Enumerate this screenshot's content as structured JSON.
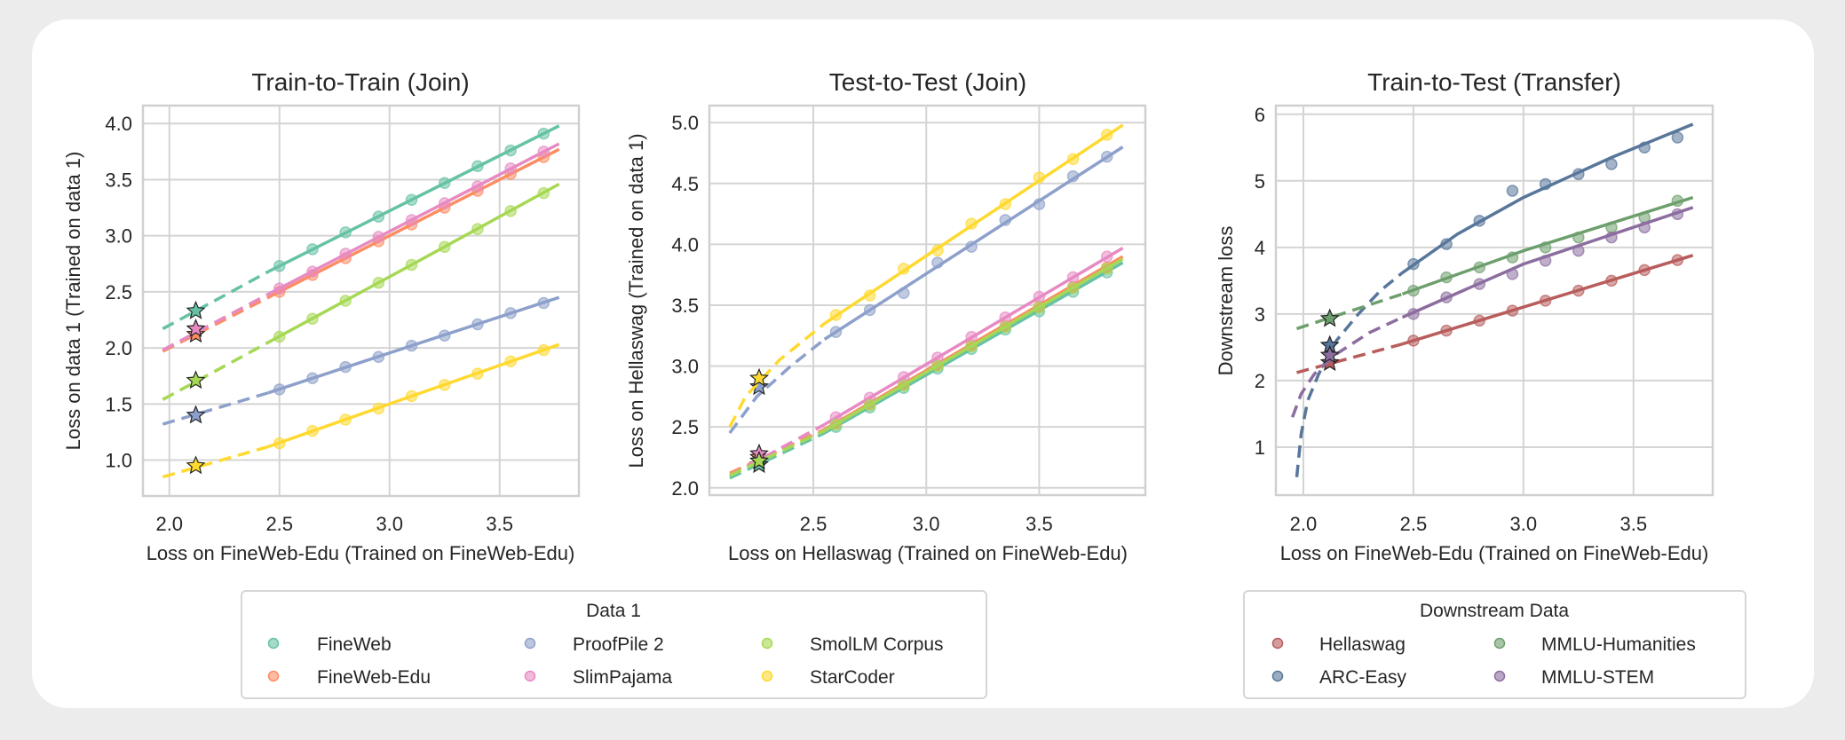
{
  "chart_data": [
    {
      "type": "scatter",
      "title": "Train-to-Train (Join)",
      "xlabel": "Loss on FineWeb-Edu (Trained on FineWeb-Edu)",
      "ylabel": "Loss on data 1 (Trained on data 1)",
      "xlim": [
        1.88,
        3.86
      ],
      "ylim": [
        0.68,
        4.16
      ],
      "xticks": [
        2.0,
        2.5,
        3.0,
        3.5
      ],
      "xtick_labels": [
        "2.0",
        "2.5",
        "3.0",
        "3.5"
      ],
      "yticks": [
        1.0,
        1.5,
        2.0,
        2.5,
        3.0,
        3.5,
        4.0
      ],
      "ytick_labels": [
        "1.0",
        "1.5",
        "2.0",
        "2.5",
        "3.0",
        "3.5",
        "4.0"
      ],
      "grid": true,
      "solid_from": 2.45,
      "x": [
        2.5,
        2.65,
        2.8,
        2.95,
        3.1,
        3.25,
        3.4,
        3.55,
        3.7
      ],
      "series": [
        {
          "name": "FineWeb",
          "color": "#66c2a5",
          "y": [
            2.73,
            2.88,
            3.03,
            3.17,
            3.32,
            3.47,
            3.62,
            3.76,
            3.91
          ],
          "fit": [
            [
              1.97,
              2.17
            ],
            [
              2.45,
              2.68
            ],
            [
              3.1,
              3.32
            ],
            [
              3.77,
              3.98
            ]
          ],
          "star": [
            2.12,
            2.33
          ]
        },
        {
          "name": "FineWeb-Edu",
          "color": "#fc8d62",
          "y": [
            2.5,
            2.65,
            2.8,
            2.95,
            3.1,
            3.25,
            3.4,
            3.55,
            3.7
          ],
          "fit": [
            [
              1.97,
              1.97
            ],
            [
              2.45,
              2.45
            ],
            [
              3.77,
              3.77
            ]
          ],
          "star": [
            2.12,
            2.12
          ]
        },
        {
          "name": "ProofPile 2",
          "color": "#8da0cb",
          "y": [
            1.63,
            1.73,
            1.83,
            1.92,
            2.02,
            2.11,
            2.21,
            2.31,
            2.4
          ],
          "fit": [
            [
              1.97,
              1.32
            ],
            [
              2.45,
              1.6
            ],
            [
              3.1,
              2.02
            ],
            [
              3.77,
              2.45
            ]
          ],
          "star": [
            2.12,
            1.4
          ]
        },
        {
          "name": "SlimPajama",
          "color": "#e78ac3",
          "y": [
            2.53,
            2.68,
            2.84,
            2.99,
            3.14,
            3.29,
            3.44,
            3.6,
            3.75
          ],
          "fit": [
            [
              1.97,
              1.98
            ],
            [
              2.45,
              2.48
            ],
            [
              3.77,
              3.82
            ]
          ],
          "star": [
            2.12,
            2.17
          ]
        },
        {
          "name": "SmolLM Corpus",
          "color": "#a6d854",
          "y": [
            2.1,
            2.26,
            2.42,
            2.58,
            2.74,
            2.9,
            3.06,
            3.22,
            3.38
          ],
          "fit": [
            [
              1.97,
              1.54
            ],
            [
              2.45,
              2.05
            ],
            [
              3.1,
              2.74
            ],
            [
              3.77,
              3.46
            ]
          ],
          "star": [
            2.12,
            1.71
          ]
        },
        {
          "name": "StarCoder",
          "color": "#ffd92f",
          "y": [
            1.15,
            1.26,
            1.36,
            1.46,
            1.57,
            1.67,
            1.77,
            1.88,
            1.98
          ],
          "fit": [
            [
              1.97,
              0.85
            ],
            [
              2.45,
              1.12
            ],
            [
              3.1,
              1.57
            ],
            [
              3.77,
              2.03
            ]
          ],
          "star": [
            2.12,
            0.95
          ]
        }
      ]
    },
    {
      "type": "scatter",
      "title": "Test-to-Test (Join)",
      "xlabel": "Loss on Hellaswag (Trained on FineWeb-Edu)",
      "ylabel": "Loss on Hellaswag (Trained on data 1)",
      "xlim": [
        2.04,
        3.97
      ],
      "ylim": [
        1.94,
        5.14
      ],
      "xticks": [
        2.5,
        3.0,
        3.5
      ],
      "xtick_labels": [
        "2.5",
        "3.0",
        "3.5"
      ],
      "yticks": [
        2.0,
        2.5,
        3.0,
        3.5,
        4.0,
        4.5,
        5.0
      ],
      "ytick_labels": [
        "2.0",
        "2.5",
        "3.0",
        "3.5",
        "4.0",
        "4.5",
        "5.0"
      ],
      "grid": true,
      "solid_from": 2.55,
      "x": [
        2.6,
        2.75,
        2.9,
        3.05,
        3.2,
        3.35,
        3.5,
        3.65,
        3.8
      ],
      "series": [
        {
          "name": "FineWeb",
          "color": "#66c2a5",
          "y": [
            2.5,
            2.66,
            2.82,
            2.98,
            3.14,
            3.3,
            3.45,
            3.61,
            3.77
          ],
          "fit": [
            [
              2.13,
              2.08
            ],
            [
              2.55,
              2.45
            ],
            [
              3.87,
              3.85
            ]
          ],
          "star": [
            2.26,
            2.19
          ]
        },
        {
          "name": "FineWeb-Edu",
          "color": "#fc8d62",
          "y": [
            2.53,
            2.69,
            2.85,
            3.01,
            3.17,
            3.33,
            3.49,
            3.65,
            3.81
          ],
          "fit": [
            [
              2.13,
              2.12
            ],
            [
              2.55,
              2.48
            ],
            [
              3.87,
              3.9
            ]
          ],
          "star": [
            2.26,
            2.25
          ]
        },
        {
          "name": "ProofPile 2",
          "color": "#8da0cb",
          "y": [
            3.28,
            3.46,
            3.6,
            3.85,
            3.98,
            4.2,
            4.33,
            4.56,
            4.72
          ],
          "fit": [
            [
              2.13,
              2.45
            ],
            [
              2.25,
              2.75
            ],
            [
              2.4,
              3.0
            ],
            [
              2.55,
              3.22
            ],
            [
              3.87,
              4.8
            ]
          ],
          "star": [
            2.26,
            2.83
          ]
        },
        {
          "name": "SlimPajama",
          "color": "#e78ac3",
          "y": [
            2.58,
            2.74,
            2.91,
            3.07,
            3.24,
            3.4,
            3.57,
            3.73,
            3.9
          ],
          "fit": [
            [
              2.13,
              2.1
            ],
            [
              2.55,
              2.52
            ],
            [
              3.87,
              3.97
            ]
          ],
          "star": [
            2.26,
            2.28
          ]
        },
        {
          "name": "SmolLM Corpus",
          "color": "#a6d854",
          "y": [
            2.52,
            2.68,
            2.84,
            3.0,
            3.16,
            3.32,
            3.48,
            3.64,
            3.8
          ],
          "fit": [
            [
              2.13,
              2.1
            ],
            [
              2.55,
              2.47
            ],
            [
              3.87,
              3.88
            ]
          ],
          "star": [
            2.26,
            2.22
          ]
        },
        {
          "name": "StarCoder",
          "color": "#ffd92f",
          "y": [
            3.42,
            3.58,
            3.8,
            3.95,
            4.17,
            4.33,
            4.55,
            4.7,
            4.9
          ],
          "fit": [
            [
              2.13,
              2.5
            ],
            [
              2.2,
              2.75
            ],
            [
              2.35,
              3.05
            ],
            [
              2.55,
              3.35
            ],
            [
              3.87,
              4.98
            ]
          ],
          "star": [
            2.26,
            2.9
          ]
        }
      ]
    },
    {
      "type": "scatter",
      "title": "Train-to-Test (Transfer)",
      "xlabel": "Loss on FineWeb-Edu (Trained on FineWeb-Edu)",
      "ylabel": "Downstream loss",
      "xlim": [
        1.875,
        3.86
      ],
      "ylim": [
        0.28,
        6.13
      ],
      "xticks": [
        2.0,
        2.5,
        3.0,
        3.5
      ],
      "xtick_labels": [
        "2.0",
        "2.5",
        "3.0",
        "3.5"
      ],
      "yticks": [
        1,
        2,
        3,
        4,
        5,
        6
      ],
      "ytick_labels": [
        "1",
        "2",
        "3",
        "4",
        "5",
        "6"
      ],
      "grid": true,
      "solid_from": 2.45,
      "x": [
        2.5,
        2.65,
        2.8,
        2.95,
        3.1,
        3.25,
        3.4,
        3.55,
        3.7
      ],
      "series": [
        {
          "name": "Hellaswag",
          "color": "#b85c5c",
          "y": [
            2.6,
            2.75,
            2.9,
            3.05,
            3.2,
            3.35,
            3.5,
            3.66,
            3.81
          ],
          "fit": [
            [
              1.97,
              2.12
            ],
            [
              2.45,
              2.55
            ],
            [
              3.77,
              3.88
            ]
          ],
          "star": [
            2.12,
            2.27
          ]
        },
        {
          "name": "ARC-Easy",
          "color": "#58769a",
          "y": [
            3.75,
            4.05,
            4.4,
            4.85,
            4.95,
            5.1,
            5.25,
            5.5,
            5.65
          ],
          "fit": [
            [
              1.97,
              0.55
            ],
            [
              1.99,
              1.2
            ],
            [
              2.02,
              1.7
            ],
            [
              2.07,
              2.1
            ],
            [
              2.15,
              2.6
            ],
            [
              2.25,
              3.0
            ],
            [
              2.35,
              3.35
            ],
            [
              2.45,
              3.62
            ],
            [
              2.7,
              4.2
            ],
            [
              3.0,
              4.75
            ],
            [
              3.4,
              5.35
            ],
            [
              3.77,
              5.85
            ]
          ],
          "star": [
            2.12,
            2.53
          ]
        },
        {
          "name": "MMLU-Humanities",
          "color": "#6d9f6d",
          "y": [
            3.35,
            3.55,
            3.7,
            3.85,
            4.0,
            4.15,
            4.3,
            4.45,
            4.7
          ],
          "fit": [
            [
              1.97,
              2.78
            ],
            [
              2.45,
              3.3
            ],
            [
              3.0,
              3.95
            ],
            [
              3.77,
              4.75
            ]
          ],
          "star": [
            2.12,
            2.93
          ]
        },
        {
          "name": "MMLU-STEM",
          "color": "#8c6d9f",
          "y": [
            3.0,
            3.25,
            3.45,
            3.6,
            3.8,
            3.95,
            4.15,
            4.3,
            4.5
          ],
          "fit": [
            [
              1.95,
              1.45
            ],
            [
              1.99,
              1.8
            ],
            [
              2.05,
              2.1
            ],
            [
              2.15,
              2.4
            ],
            [
              2.3,
              2.72
            ],
            [
              2.45,
              2.95
            ],
            [
              3.0,
              3.75
            ],
            [
              3.77,
              4.6
            ]
          ],
          "star": [
            2.12,
            2.38
          ]
        }
      ]
    }
  ],
  "legends": [
    {
      "title": "Data 1",
      "entries": [
        "FineWeb",
        "FineWeb-Edu",
        "ProofPile 2",
        "SlimPajama",
        "SmolLM Corpus",
        "StarCoder"
      ],
      "colors": [
        "#66c2a5",
        "#fc8d62",
        "#8da0cb",
        "#e78ac3",
        "#a6d854",
        "#ffd92f"
      ]
    },
    {
      "title": "Downstream Data",
      "entries": [
        "Hellaswag",
        "ARC-Easy",
        "MMLU-Humanities",
        "MMLU-STEM"
      ],
      "colors": [
        "#b85c5c",
        "#58769a",
        "#6d9f6d",
        "#8c6d9f"
      ]
    }
  ]
}
